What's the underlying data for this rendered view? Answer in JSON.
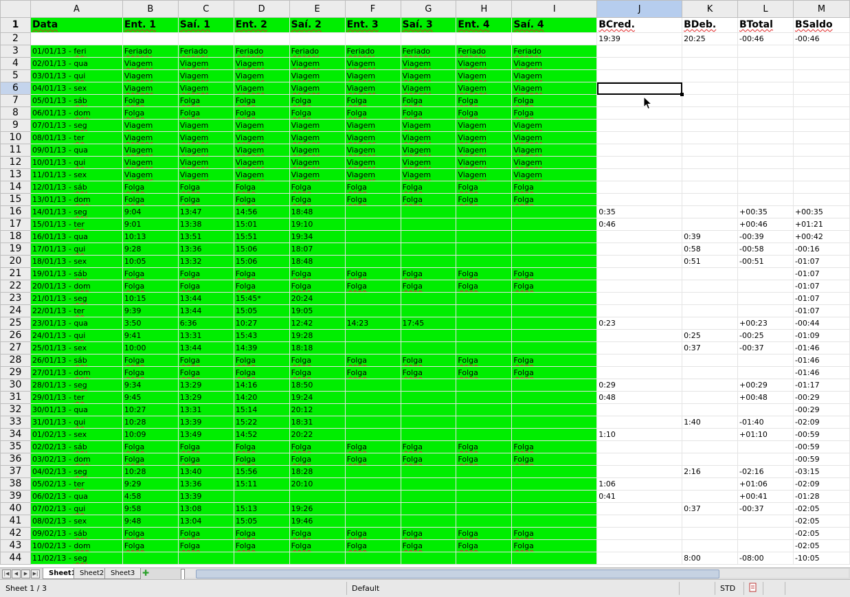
{
  "columns": [
    "A",
    "B",
    "C",
    "D",
    "E",
    "F",
    "G",
    "H",
    "I",
    "J",
    "K",
    "L",
    "M"
  ],
  "header_row": [
    "Data",
    "Ent. 1",
    "Saí. 1",
    "Ent. 2",
    "Saí. 2",
    "Ent. 3",
    "Saí. 3",
    "Ent. 4",
    "Saí. 4",
    "BCred.",
    "BDeb.",
    "BTotal",
    "BSaldo"
  ],
  "row2": [
    "",
    "",
    "",
    "",
    "",
    "",
    "",
    "",
    "",
    "19:39",
    "20:25",
    "-00:46",
    "-00:46"
  ],
  "rows": [
    [
      "01/01/13 - feri",
      "Feriado",
      "Feriado",
      "Feriado",
      "Feriado",
      "Feriado",
      "Feriado",
      "Feriado",
      "Feriado",
      "",
      "",
      "",
      ""
    ],
    [
      "02/01/13 - qua",
      "Viagem",
      "Viagem",
      "Viagem",
      "Viagem",
      "Viagem",
      "Viagem",
      "Viagem",
      "Viagem",
      "",
      "",
      "",
      ""
    ],
    [
      "03/01/13 - qui",
      "Viagem",
      "Viagem",
      "Viagem",
      "Viagem",
      "Viagem",
      "Viagem",
      "Viagem",
      "Viagem",
      "",
      "",
      "",
      ""
    ],
    [
      "04/01/13 - sex",
      "Viagem",
      "Viagem",
      "Viagem",
      "Viagem",
      "Viagem",
      "Viagem",
      "Viagem",
      "Viagem",
      "",
      "",
      "",
      ""
    ],
    [
      "05/01/13 - sáb",
      "Folga",
      "Folga",
      "Folga",
      "Folga",
      "Folga",
      "Folga",
      "Folga",
      "Folga",
      "",
      "",
      "",
      ""
    ],
    [
      "06/01/13 - dom",
      "Folga",
      "Folga",
      "Folga",
      "Folga",
      "Folga",
      "Folga",
      "Folga",
      "Folga",
      "",
      "",
      "",
      ""
    ],
    [
      "07/01/13 - seg",
      "Viagem",
      "Viagem",
      "Viagem",
      "Viagem",
      "Viagem",
      "Viagem",
      "Viagem",
      "Viagem",
      "",
      "",
      "",
      ""
    ],
    [
      "08/01/13 - ter",
      "Viagem",
      "Viagem",
      "Viagem",
      "Viagem",
      "Viagem",
      "Viagem",
      "Viagem",
      "Viagem",
      "",
      "",
      "",
      ""
    ],
    [
      "09/01/13 - qua",
      "Viagem",
      "Viagem",
      "Viagem",
      "Viagem",
      "Viagem",
      "Viagem",
      "Viagem",
      "Viagem",
      "",
      "",
      "",
      ""
    ],
    [
      "10/01/13 - qui",
      "Viagem",
      "Viagem",
      "Viagem",
      "Viagem",
      "Viagem",
      "Viagem",
      "Viagem",
      "Viagem",
      "",
      "",
      "",
      ""
    ],
    [
      "11/01/13 - sex",
      "Viagem",
      "Viagem",
      "Viagem",
      "Viagem",
      "Viagem",
      "Viagem",
      "Viagem",
      "Viagem",
      "",
      "",
      "",
      ""
    ],
    [
      "12/01/13 - sáb",
      "Folga",
      "Folga",
      "Folga",
      "Folga",
      "Folga",
      "Folga",
      "Folga",
      "Folga",
      "",
      "",
      "",
      ""
    ],
    [
      "13/01/13 - dom",
      "Folga",
      "Folga",
      "Folga",
      "Folga",
      "Folga",
      "Folga",
      "Folga",
      "Folga",
      "",
      "",
      "",
      ""
    ],
    [
      "14/01/13 - seg",
      "9:04",
      "13:47",
      "14:56",
      "18:48",
      "",
      "",
      "",
      "",
      "0:35",
      "",
      "+00:35",
      "+00:35"
    ],
    [
      "15/01/13 - ter",
      "9:01",
      "13:38",
      "15:01",
      "19:10",
      "",
      "",
      "",
      "",
      "0:46",
      "",
      "+00:46",
      "+01:21"
    ],
    [
      "16/01/13 - qua",
      "10:13",
      "13:51",
      "15:51",
      "19:34",
      "",
      "",
      "",
      "",
      "",
      "0:39",
      "-00:39",
      "+00:42"
    ],
    [
      "17/01/13 - qui",
      "9:28",
      "13:36",
      "15:06",
      "18:07",
      "",
      "",
      "",
      "",
      "",
      "0:58",
      "-00:58",
      "-00:16"
    ],
    [
      "18/01/13 - sex",
      "10:05",
      "13:32",
      "15:06",
      "18:48",
      "",
      "",
      "",
      "",
      "",
      "0:51",
      "-00:51",
      "-01:07"
    ],
    [
      "19/01/13 - sáb",
      "Folga",
      "Folga",
      "Folga",
      "Folga",
      "Folga",
      "Folga",
      "Folga",
      "Folga",
      "",
      "",
      "",
      "-01:07"
    ],
    [
      "20/01/13 - dom",
      "Folga",
      "Folga",
      "Folga",
      "Folga",
      "Folga",
      "Folga",
      "Folga",
      "Folga",
      "",
      "",
      "",
      "-01:07"
    ],
    [
      "21/01/13 - seg",
      "10:15",
      "13:44",
      "15:45*",
      "20:24",
      "",
      "",
      "",
      "",
      "",
      "",
      "",
      "-01:07"
    ],
    [
      "22/01/13 - ter",
      "9:39",
      "13:44",
      "15:05",
      "19:05",
      "",
      "",
      "",
      "",
      "",
      "",
      "",
      "-01:07"
    ],
    [
      "23/01/13 - qua",
      "3:50",
      "6:36",
      "10:27",
      "12:42",
      "14:23",
      "17:45",
      "",
      "",
      "0:23",
      "",
      "+00:23",
      "-00:44"
    ],
    [
      "24/01/13 - qui",
      "9:41",
      "13:31",
      "15:43",
      "19:28",
      "",
      "",
      "",
      "",
      "",
      "0:25",
      "-00:25",
      "-01:09"
    ],
    [
      "25/01/13 - sex",
      "10:00",
      "13:44",
      "14:39",
      "18:18",
      "",
      "",
      "",
      "",
      "",
      "0:37",
      "-00:37",
      "-01:46"
    ],
    [
      "26/01/13 - sáb",
      "Folga",
      "Folga",
      "Folga",
      "Folga",
      "Folga",
      "Folga",
      "Folga",
      "Folga",
      "",
      "",
      "",
      "-01:46"
    ],
    [
      "27/01/13 - dom",
      "Folga",
      "Folga",
      "Folga",
      "Folga",
      "Folga",
      "Folga",
      "Folga",
      "Folga",
      "",
      "",
      "",
      "-01:46"
    ],
    [
      "28/01/13 - seg",
      "9:34",
      "13:29",
      "14:16",
      "18:50",
      "",
      "",
      "",
      "",
      "0:29",
      "",
      "+00:29",
      "-01:17"
    ],
    [
      "29/01/13 - ter",
      "9:45",
      "13:29",
      "14:20",
      "19:24",
      "",
      "",
      "",
      "",
      "0:48",
      "",
      "+00:48",
      "-00:29"
    ],
    [
      "30/01/13 - qua",
      "10:27",
      "13:31",
      "15:14",
      "20:12",
      "",
      "",
      "",
      "",
      "",
      "",
      "",
      "-00:29"
    ],
    [
      "31/01/13 - qui",
      "10:28",
      "13:39",
      "15:22",
      "18:31",
      "",
      "",
      "",
      "",
      "",
      "1:40",
      "-01:40",
      "-02:09"
    ],
    [
      "01/02/13 - sex",
      "10:09",
      "13:49",
      "14:52",
      "20:22",
      "",
      "",
      "",
      "",
      "1:10",
      "",
      "+01:10",
      "-00:59"
    ],
    [
      "02/02/13 - sáb",
      "Folga",
      "Folga",
      "Folga",
      "Folga",
      "Folga",
      "Folga",
      "Folga",
      "Folga",
      "",
      "",
      "",
      "-00:59"
    ],
    [
      "03/02/13 - dom",
      "Folga",
      "Folga",
      "Folga",
      "Folga",
      "Folga",
      "Folga",
      "Folga",
      "Folga",
      "",
      "",
      "",
      "-00:59"
    ],
    [
      "04/02/13 - seg",
      "10:28",
      "13:40",
      "15:56",
      "18:28",
      "",
      "",
      "",
      "",
      "",
      "2:16",
      "-02:16",
      "-03:15"
    ],
    [
      "05/02/13 - ter",
      "9:29",
      "13:36",
      "15:11",
      "20:10",
      "",
      "",
      "",
      "",
      "1:06",
      "",
      "+01:06",
      "-02:09"
    ],
    [
      "06/02/13 - qua",
      "4:58",
      "13:39",
      "",
      "",
      "",
      "",
      "",
      "",
      "0:41",
      "",
      "+00:41",
      "-01:28"
    ],
    [
      "07/02/13 - qui",
      "9:58",
      "13:08",
      "15:13",
      "19:26",
      "",
      "",
      "",
      "",
      "",
      "0:37",
      "-00:37",
      "-02:05"
    ],
    [
      "08/02/13 - sex",
      "9:48",
      "13:04",
      "15:05",
      "19:46",
      "",
      "",
      "",
      "",
      "",
      "",
      "",
      "-02:05"
    ],
    [
      "09/02/13 - sáb",
      "Folga",
      "Folga",
      "Folga",
      "Folga",
      "Folga",
      "Folga",
      "Folga",
      "Folga",
      "",
      "",
      "",
      "-02:05"
    ],
    [
      "10/02/13 - dom",
      "Folga",
      "Folga",
      "Folga",
      "Folga",
      "Folga",
      "Folga",
      "Folga",
      "Folga",
      "",
      "",
      "",
      "-02:05"
    ],
    [
      "11/02/13 - seg",
      "",
      "",
      "",
      "",
      "",
      "",
      "",
      "",
      "",
      "8:00",
      "-08:00",
      "-10:05"
    ]
  ],
  "selection": {
    "column": "J",
    "row": 6
  },
  "colors": {
    "green_fill": "#00ee00",
    "header_bg": "#ececec",
    "selected_header": "#b6cdee",
    "spellcheck": "#e02020"
  },
  "tabs": [
    "Sheet1",
    "Sheet2",
    "Sheet3"
  ],
  "active_tab": "Sheet1",
  "status": {
    "sheet_info": "Sheet 1 / 3",
    "page_style": "Default",
    "selection_mode": "STD"
  }
}
